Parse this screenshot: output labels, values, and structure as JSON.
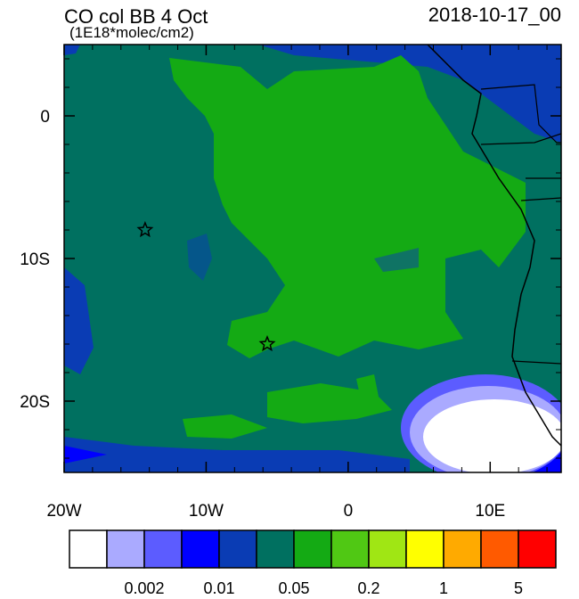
{
  "chart_data": {
    "type": "map",
    "title": "CO col BB 4 Oct",
    "subtitle": "(1E18*molec/cm2)",
    "date": "2018-10-17_00",
    "xlim": [
      -20,
      15
    ],
    "ylim": [
      -25,
      5
    ],
    "xticks": [
      {
        "value": -20,
        "label": "20W"
      },
      {
        "value": -10,
        "label": "10W"
      },
      0,
      {
        "value": 10,
        "label": "10E"
      }
    ],
    "yticks": [
      0,
      {
        "value": -10,
        "label": "10S"
      },
      {
        "value": -20,
        "label": "20S"
      }
    ],
    "markers": [
      {
        "lon": -14.3,
        "lat": -8
      },
      {
        "lon": -5.7,
        "lat": -16
      }
    ],
    "colorbar": {
      "colors": [
        "#ffffff",
        "#aaaaff",
        "#5c5cff",
        "#0000ff",
        "#0a3cb4",
        "#007060",
        "#14aa14",
        "#50c814",
        "#a0e614",
        "#ffff00",
        "#ffaa00",
        "#ff5a00",
        "#ff0000"
      ],
      "labels": [
        0.002,
        0.01,
        0.05,
        0.2,
        1,
        5
      ]
    }
  }
}
